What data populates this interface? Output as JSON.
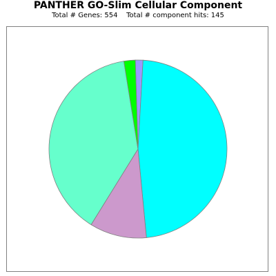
{
  "chart_data": {
    "type": "pie",
    "title": "PANTHER GO-Slim Cellular Component",
    "subtitle": "Total # Genes: 554    Total # component hits: 145",
    "labels_shown": false,
    "legend": "none",
    "slices": [
      {
        "value": 2,
        "color": "#9999ff"
      },
      {
        "value": 69,
        "color": "#00ffff"
      },
      {
        "value": 15,
        "color": "#cc99cc"
      },
      {
        "value": 56,
        "color": "#66ffcc"
      },
      {
        "value": 3,
        "color": "#00ff00"
      }
    ]
  }
}
